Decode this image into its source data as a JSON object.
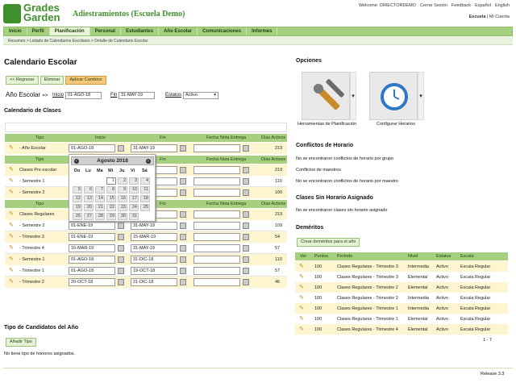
{
  "header": {
    "logo_line1": "Grades",
    "logo_line2": "Garden",
    "app_title": "Adiestramientos (Escuela Demo)",
    "top_links": [
      "Welcome: DIRECTORDEMO",
      "Cerrar Sesión",
      "Feedback",
      "Español",
      "English"
    ],
    "school_link": "Escuela",
    "my_account_link": "Mi Cuenta"
  },
  "nav": [
    "Inicio",
    "Perfil",
    "Planificación",
    "Personal",
    "Estudiantes",
    "Año Escolar",
    "Comunicaciones",
    "Informes"
  ],
  "breadcrumb": "Resumen  >  Listado de Calendarios Escolares  >  Detalle de Calendario Escolar",
  "page_title": "Calendario Escolar",
  "buttons": {
    "back": "<< Regresar",
    "delete": "Eliminar",
    "apply": "Aplicar Cambios"
  },
  "school_year": {
    "label": "Año Escolar",
    "arrow": "=>",
    "start_label": "Inicio",
    "start_value": "01-AGO-18",
    "end_label": "Fin",
    "end_value": "31-MAY-19",
    "status_label": "Estatus",
    "status_value": "Activo"
  },
  "class_calendar_title": "Calendario de Clases",
  "table_headers": [
    "Tipo",
    "Inicio",
    "Fin",
    "Fecha Nota Entrega",
    "Días Activos"
  ],
  "groups": [
    {
      "rows": [
        {
          "tipo": "- Año Escolar",
          "inicio": "01-AGO-18",
          "fin": "31-MAY-19",
          "nota": "",
          "dias": "219"
        }
      ]
    },
    {
      "rows": [
        {
          "tipo": "Clases Pre escolar",
          "inicio": "",
          "fin": "9",
          "nota": "",
          "dias": "219"
        },
        {
          "tipo": "- Semestre 1",
          "inicio": "",
          "fin": "3",
          "nota": "",
          "dias": "110"
        },
        {
          "tipo": "- Semestre 2",
          "inicio": "",
          "fin": "9",
          "nota": "",
          "dias": "100"
        }
      ]
    },
    {
      "rows": [
        {
          "tipo": "Clases Regulares",
          "inicio": "01-AGO-18",
          "fin": "31-MAY-19",
          "nota": "",
          "dias": "219"
        },
        {
          "tipo": "- Semestre 2",
          "inicio": "01-ENE-19",
          "fin": "31-MAY-19",
          "nota": "",
          "dias": "109"
        },
        {
          "tipo": "- Trimestre 3",
          "inicio": "01-ENE-19",
          "fin": "15-MAR-19",
          "nota": "",
          "dias": "54"
        },
        {
          "tipo": "- Trimestre 4",
          "inicio": "16-MAR-19",
          "fin": "31-MAY-19",
          "nota": "",
          "dias": "57"
        },
        {
          "tipo": "- Semestre 1",
          "inicio": "01-AGO-18",
          "fin": "31-DIC-18",
          "nota": "",
          "dias": "110"
        },
        {
          "tipo": "- Trimestre 1",
          "inicio": "01-AGO-18",
          "fin": "19-OCT-18",
          "nota": "",
          "dias": "57"
        },
        {
          "tipo": "- Trimestre 2",
          "inicio": "20-OCT-18",
          "fin": "21-DIC-18",
          "nota": "",
          "dias": "46"
        }
      ]
    }
  ],
  "datepicker": {
    "month": "Agosto 2018",
    "prev": "‹",
    "next": "›",
    "dow": [
      "Do",
      "Lu",
      "Ma",
      "Mi",
      "Ju",
      "Vi",
      "Sá"
    ],
    "weeks": [
      [
        "",
        "",
        "",
        "1",
        "2",
        "3",
        "4"
      ],
      [
        "5",
        "6",
        "7",
        "8",
        "9",
        "10",
        "11"
      ],
      [
        "12",
        "13",
        "14",
        "15",
        "16",
        "17",
        "18"
      ],
      [
        "19",
        "20",
        "21",
        "22",
        "23",
        "24",
        "25"
      ],
      [
        "26",
        "27",
        "28",
        "29",
        "30",
        "31",
        ""
      ]
    ],
    "selected": "1"
  },
  "candidates": {
    "title": "Tipo de Candidatos del Año",
    "add_button": "Añadir Tipo",
    "empty": "No tiene tipo de honores asignados."
  },
  "options": {
    "title": "Opciones",
    "tile1": "Herramientas de Planificación",
    "tile2": "Configurar Horarios"
  },
  "conflicts": {
    "title": "Conflictos de Horario",
    "group_msg": "No se encontraron conflictos de horario por grupo",
    "teachers_title": "Conflictos de maestros",
    "teacher_msg": "No se encontraron conflictos de horario por maestro"
  },
  "unassigned": {
    "title": "Clases Sin Horario Asignado",
    "msg": "No se encontraron clases sin horario asignado"
  },
  "demerits": {
    "title": "Deméritos",
    "create_button": "Crear deméritos para el año",
    "headers": [
      "Ver",
      "Puntos",
      "Período",
      "Nivel",
      "Estatus",
      "Escala"
    ],
    "rows": [
      [
        "100",
        "Clases Regulares - Trimestre 3",
        "Intermedia",
        "Activo",
        "Escala Regular"
      ],
      [
        "100",
        "Clases Regulares - Trimestre 3",
        "Elemental",
        "Activo",
        "Escala Regular"
      ],
      [
        "100",
        "Clases Regulares - Trimestre 2",
        "Elemental",
        "Activo",
        "Escala Regular"
      ],
      [
        "100",
        "Clases Regulares - Trimestre 2",
        "Intermedia",
        "Activo",
        "Escala Regular"
      ],
      [
        "100",
        "Clases Regulares - Trimestre 1",
        "Intermedia",
        "Activo",
        "Escala Regular"
      ],
      [
        "100",
        "Clases Regulares - Trimestre 1",
        "Elemental",
        "Activo",
        "Escala Regular"
      ],
      [
        "100",
        "Clases Regulares - Trimestre 4",
        "Elemental",
        "Activo",
        "Escala Regular"
      ]
    ],
    "pager": "1 - 7"
  },
  "footer": {
    "release": "Release 3.3"
  }
}
